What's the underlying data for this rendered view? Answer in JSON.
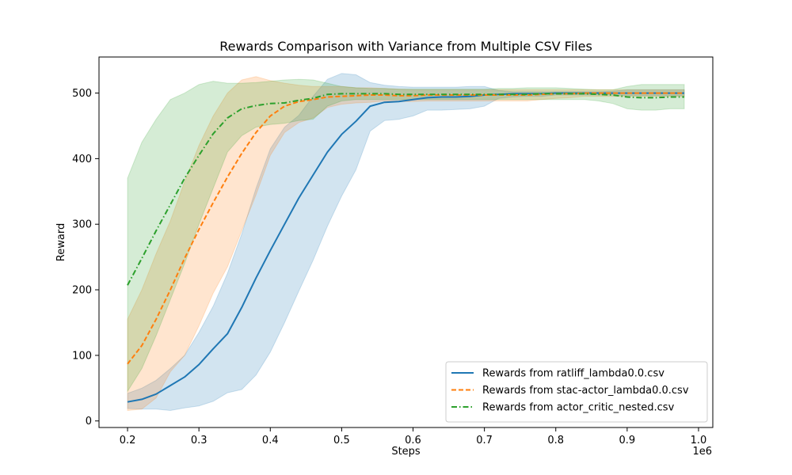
{
  "chart_data": {
    "type": "line",
    "title": "Rewards Comparison with Variance from Multiple CSV Files",
    "xlabel": "Steps",
    "ylabel": "Reward",
    "x_offset_label": "1e6",
    "xlim": [
      0.16,
      1.02
    ],
    "ylim": [
      -10,
      555
    ],
    "x_ticks": [
      0.2,
      0.3,
      0.4,
      0.5,
      0.6,
      0.7,
      0.8,
      0.9,
      1.0
    ],
    "x_tick_labels": [
      "0.2",
      "0.3",
      "0.4",
      "0.5",
      "0.6",
      "0.7",
      "0.8",
      "0.9",
      "1.0"
    ],
    "y_ticks": [
      0,
      100,
      200,
      300,
      400,
      500
    ],
    "y_tick_labels": [
      "0",
      "100",
      "200",
      "300",
      "400",
      "500"
    ],
    "grid": false,
    "legend_position": "bottom-right",
    "x": [
      0.2,
      0.22,
      0.24,
      0.26,
      0.28,
      0.3,
      0.32,
      0.34,
      0.36,
      0.38,
      0.4,
      0.42,
      0.44,
      0.46,
      0.48,
      0.5,
      0.52,
      0.54,
      0.56,
      0.58,
      0.6,
      0.62,
      0.64,
      0.66,
      0.68,
      0.7,
      0.72,
      0.74,
      0.76,
      0.78,
      0.8,
      0.82,
      0.84,
      0.86,
      0.88,
      0.9,
      0.92,
      0.94,
      0.96,
      0.98
    ],
    "series": [
      {
        "name": "Rewards from ratliff_lambda0.0.csv",
        "color": "#1f77b4",
        "dash": "solid",
        "mean": [
          29,
          33,
          41,
          54,
          67,
          86,
          110,
          133,
          173,
          218,
          260,
          300,
          340,
          375,
          410,
          437,
          457,
          480,
          486,
          487,
          490,
          493,
          494,
          494,
          495,
          497,
          498,
          499,
          499,
          499,
          500,
          500,
          500,
          500,
          500,
          500,
          500,
          500,
          500,
          500
        ],
        "upper": [
          42,
          50,
          62,
          80,
          100,
          135,
          175,
          225,
          285,
          355,
          415,
          448,
          466,
          495,
          521,
          530,
          528,
          516,
          512,
          510,
          509,
          509,
          509,
          509,
          510,
          510,
          504,
          502,
          502,
          502,
          502,
          502,
          502,
          502,
          503,
          505,
          505,
          505,
          505,
          505
        ],
        "lower": [
          19,
          18,
          18,
          16,
          20,
          23,
          30,
          43,
          48,
          70,
          105,
          150,
          198,
          245,
          297,
          343,
          383,
          442,
          458,
          460,
          465,
          474,
          474,
          475,
          476,
          480,
          492,
          494,
          495,
          495,
          497,
          497,
          497,
          497,
          497,
          496,
          496,
          496,
          496,
          496
        ]
      },
      {
        "name": "Rewards from stac-actor_lambda0.0.csv",
        "color": "#ff7f0e",
        "dash": "dashed",
        "mean": [
          87,
          115,
          155,
          200,
          248,
          292,
          333,
          372,
          408,
          440,
          465,
          480,
          487,
          490,
          494,
          495,
          496,
          497,
          497,
          496,
          496,
          497,
          497,
          497,
          497,
          497,
          497,
          497,
          497,
          498,
          499,
          499,
          500,
          500,
          500,
          500,
          500,
          500,
          500,
          500
        ],
        "upper": [
          155,
          200,
          255,
          305,
          365,
          420,
          465,
          500,
          520,
          525,
          519,
          515,
          512,
          510,
          510,
          510,
          508,
          508,
          507,
          506,
          505,
          505,
          505,
          505,
          505,
          505,
          505,
          505,
          505,
          505,
          505,
          505,
          505,
          505,
          505,
          505,
          505,
          505,
          505,
          505
        ],
        "lower": [
          16,
          18,
          35,
          75,
          100,
          145,
          195,
          235,
          290,
          345,
          405,
          440,
          455,
          462,
          478,
          483,
          485,
          486,
          488,
          487,
          487,
          488,
          488,
          488,
          488,
          488,
          488,
          488,
          488,
          490,
          492,
          493,
          495,
          495,
          495,
          495,
          495,
          495,
          495,
          495
        ]
      },
      {
        "name": "Rewards from actor_critic_nested.csv",
        "color": "#2ca02c",
        "dash": "dashdot",
        "mean": [
          207,
          248,
          290,
          330,
          370,
          405,
          438,
          462,
          476,
          481,
          484,
          485,
          489,
          492,
          498,
          499,
          499,
          499,
          499,
          498,
          498,
          498,
          498,
          498,
          498,
          498,
          498,
          498,
          498,
          499,
          499,
          499,
          499,
          498,
          497,
          494,
          493,
          493,
          494,
          494
        ],
        "upper": [
          370,
          425,
          460,
          490,
          500,
          513,
          518,
          515,
          515,
          516,
          518,
          520,
          521,
          520,
          515,
          510,
          508,
          507,
          507,
          506,
          506,
          506,
          506,
          506,
          506,
          506,
          507,
          507,
          508,
          508,
          508,
          507,
          506,
          505,
          505,
          510,
          513,
          513,
          513,
          513
        ],
        "lower": [
          45,
          80,
          130,
          185,
          240,
          300,
          355,
          410,
          435,
          448,
          452,
          454,
          458,
          460,
          480,
          488,
          490,
          490,
          490,
          490,
          490,
          490,
          490,
          490,
          490,
          490,
          490,
          490,
          490,
          490,
          490,
          490,
          490,
          488,
          484,
          476,
          474,
          474,
          476,
          476
        ]
      }
    ]
  }
}
